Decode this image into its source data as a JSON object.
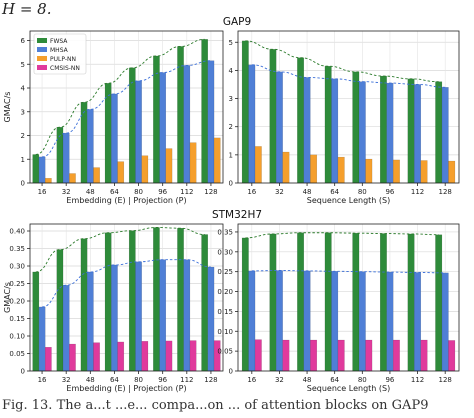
{
  "header_fragment": "H = 8.",
  "caption_fragment": "Fig. 13. The a...t ...e... compa...on ... of attention blocks on GAP9",
  "colors": {
    "fwsa": "#2e8b3a",
    "mhsa": "#4f7fd6",
    "pulp": "#f59f2c",
    "cmsis": "#e03a9c",
    "trend": "#2a7a2a",
    "trend_blue": "#3b6fd8"
  },
  "chart_data": [
    {
      "type": "bar",
      "group": "GAP9",
      "title": "GAP9",
      "xlabel": "Embedding (E) | Projection (P)",
      "ylabel": "GMAC/s",
      "categories": [
        "16",
        "32",
        "48",
        "64",
        "80",
        "96",
        "112",
        "128"
      ],
      "ylim": [
        0,
        6.4
      ],
      "yticks": [
        0,
        1,
        2,
        3,
        4,
        5,
        6
      ],
      "grid": true,
      "legend": "upper-left",
      "series": [
        {
          "name": "FWSA",
          "color_key": "fwsa",
          "values": [
            1.2,
            2.35,
            3.4,
            4.2,
            4.85,
            5.35,
            5.75,
            6.05
          ]
        },
        {
          "name": "MHSA",
          "color_key": "mhsa",
          "values": [
            1.1,
            2.1,
            3.1,
            3.75,
            4.3,
            4.65,
            4.95,
            5.15
          ]
        },
        {
          "name": "PULP-NN",
          "color_key": "pulp",
          "values": [
            0.2,
            0.4,
            0.65,
            0.9,
            1.15,
            1.45,
            1.7,
            1.9
          ]
        },
        {
          "name": "CMSIS-NN",
          "color_key": "cmsis",
          "values": [
            null,
            null,
            null,
            null,
            null,
            null,
            null,
            null
          ]
        }
      ]
    },
    {
      "type": "bar",
      "group": "GAP9",
      "title": "",
      "xlabel": "Sequence Length (S)",
      "ylabel": "",
      "categories": [
        "16",
        "32",
        "48",
        "64",
        "80",
        "96",
        "112",
        "128"
      ],
      "ylim": [
        0,
        5.4
      ],
      "yticks": [
        0,
        1,
        2,
        3,
        4,
        5
      ],
      "grid": true,
      "series": [
        {
          "name": "FWSA",
          "values": [
            5.05,
            4.75,
            4.45,
            4.15,
            3.95,
            3.8,
            3.7,
            3.6
          ]
        },
        {
          "name": "MHSA",
          "values": [
            4.2,
            3.95,
            3.75,
            3.7,
            3.6,
            3.55,
            3.5,
            3.4
          ]
        },
        {
          "name": "PULP-NN",
          "values": [
            1.3,
            1.1,
            1.0,
            0.92,
            0.85,
            0.82,
            0.8,
            0.78
          ]
        },
        {
          "name": "CMSIS-NN",
          "values": [
            null,
            null,
            null,
            null,
            null,
            null,
            null,
            null
          ]
        }
      ]
    },
    {
      "type": "bar",
      "group": "STM32H7",
      "title": "STM32H7",
      "xlabel": "Embedding (E) | Projection (P)",
      "ylabel": "GMAC/s",
      "categories": [
        "16",
        "32",
        "48",
        "64",
        "80",
        "96",
        "112",
        "128"
      ],
      "ylim": [
        0,
        0.42
      ],
      "yticks": [
        0,
        0.05,
        0.1,
        0.15,
        0.2,
        0.25,
        0.3,
        0.35,
        0.4
      ],
      "grid": true,
      "series": [
        {
          "name": "FWSA",
          "values": [
            0.283,
            0.347,
            0.378,
            0.395,
            0.401,
            0.41,
            0.408,
            0.39
          ]
        },
        {
          "name": "MHSA",
          "values": [
            0.183,
            0.245,
            0.283,
            0.303,
            0.312,
            0.318,
            0.318,
            0.297
          ]
        },
        {
          "name": "PULP-NN",
          "values": [
            null,
            null,
            null,
            null,
            null,
            null,
            null,
            null
          ]
        },
        {
          "name": "CMSIS-NN",
          "values": [
            0.068,
            0.077,
            0.081,
            0.083,
            0.085,
            0.086,
            0.087,
            0.087
          ]
        }
      ]
    },
    {
      "type": "bar",
      "group": "STM32H7",
      "title": "",
      "xlabel": "Sequence Length (S)",
      "ylabel": "",
      "categories": [
        "16",
        "32",
        "48",
        "64",
        "80",
        "96",
        "112",
        "128"
      ],
      "ylim": [
        0,
        0.37
      ],
      "yticks": [
        0,
        0.05,
        0.1,
        0.15,
        0.2,
        0.25,
        0.3,
        0.35
      ],
      "grid": true,
      "series": [
        {
          "name": "FWSA",
          "values": [
            0.335,
            0.345,
            0.348,
            0.348,
            0.347,
            0.346,
            0.345,
            0.343
          ]
        },
        {
          "name": "MHSA",
          "values": [
            0.252,
            0.253,
            0.252,
            0.251,
            0.25,
            0.249,
            0.248,
            0.247
          ]
        },
        {
          "name": "PULP-NN",
          "values": [
            null,
            null,
            null,
            null,
            null,
            null,
            null,
            null
          ]
        },
        {
          "name": "CMSIS-NN",
          "values": [
            0.079,
            0.078,
            0.078,
            0.078,
            0.078,
            0.078,
            0.078,
            0.077
          ]
        }
      ]
    }
  ]
}
